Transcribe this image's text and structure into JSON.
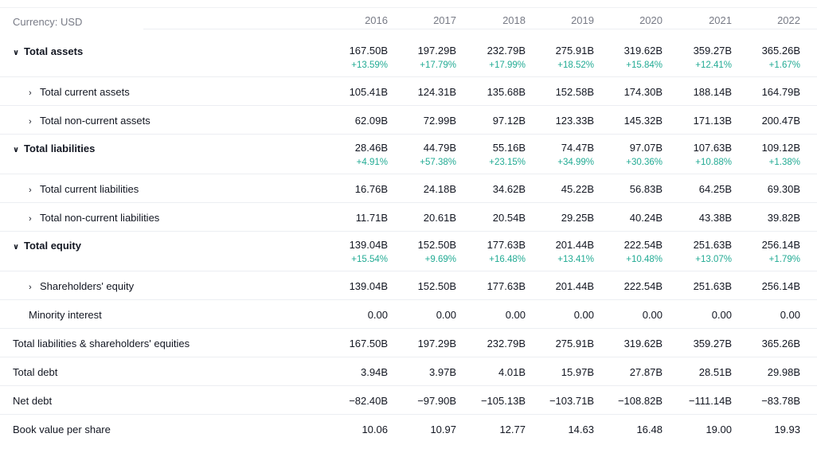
{
  "header": {
    "currency_label": "Currency: USD",
    "years": [
      "2016",
      "2017",
      "2018",
      "2019",
      "2020",
      "2021",
      "2022"
    ]
  },
  "icons": {
    "expanded": "chevron-down-icon",
    "collapsed": "chevron-right-icon"
  },
  "colors": {
    "positive": "#22ab94",
    "muted": "#787b86",
    "text": "#131722"
  },
  "rows": [
    {
      "label": "Total assets",
      "bold": true,
      "chevron": "down",
      "indent": 1,
      "values": [
        "167.50B",
        "197.29B",
        "232.79B",
        "275.91B",
        "319.62B",
        "359.27B",
        "365.26B"
      ],
      "changes": [
        "+13.59%",
        "+17.79%",
        "+17.99%",
        "+18.52%",
        "+15.84%",
        "+12.41%",
        "+1.67%"
      ]
    },
    {
      "label": "Total current assets",
      "bold": false,
      "chevron": "right",
      "indent": 2,
      "values": [
        "105.41B",
        "124.31B",
        "135.68B",
        "152.58B",
        "174.30B",
        "188.14B",
        "164.79B"
      ]
    },
    {
      "label": "Total non-current assets",
      "bold": false,
      "chevron": "right",
      "indent": 2,
      "values": [
        "62.09B",
        "72.99B",
        "97.12B",
        "123.33B",
        "145.32B",
        "171.13B",
        "200.47B"
      ]
    },
    {
      "label": "Total liabilities",
      "bold": true,
      "chevron": "down",
      "indent": 1,
      "values": [
        "28.46B",
        "44.79B",
        "55.16B",
        "74.47B",
        "97.07B",
        "107.63B",
        "109.12B"
      ],
      "changes": [
        "+4.91%",
        "+57.38%",
        "+23.15%",
        "+34.99%",
        "+30.36%",
        "+10.88%",
        "+1.38%"
      ]
    },
    {
      "label": "Total current liabilities",
      "bold": false,
      "chevron": "right",
      "indent": 2,
      "values": [
        "16.76B",
        "24.18B",
        "34.62B",
        "45.22B",
        "56.83B",
        "64.25B",
        "69.30B"
      ]
    },
    {
      "label": "Total non-current liabilities",
      "bold": false,
      "chevron": "right",
      "indent": 2,
      "values": [
        "11.71B",
        "20.61B",
        "20.54B",
        "29.25B",
        "40.24B",
        "43.38B",
        "39.82B"
      ]
    },
    {
      "label": "Total equity",
      "bold": true,
      "chevron": "down",
      "indent": 1,
      "values": [
        "139.04B",
        "152.50B",
        "177.63B",
        "201.44B",
        "222.54B",
        "251.63B",
        "256.14B"
      ],
      "changes": [
        "+15.54%",
        "+9.69%",
        "+16.48%",
        "+13.41%",
        "+10.48%",
        "+13.07%",
        "+1.79%"
      ]
    },
    {
      "label": "Shareholders' equity",
      "bold": false,
      "chevron": "right",
      "indent": 2,
      "values": [
        "139.04B",
        "152.50B",
        "177.63B",
        "201.44B",
        "222.54B",
        "251.63B",
        "256.14B"
      ]
    },
    {
      "label": "Minority interest",
      "bold": false,
      "chevron": "none",
      "indent": 2,
      "values": [
        "0.00",
        "0.00",
        "0.00",
        "0.00",
        "0.00",
        "0.00",
        "0.00"
      ]
    },
    {
      "label": "Total liabilities & shareholders' equities",
      "bold": false,
      "chevron": "none",
      "indent": 0,
      "values": [
        "167.50B",
        "197.29B",
        "232.79B",
        "275.91B",
        "319.62B",
        "359.27B",
        "365.26B"
      ]
    },
    {
      "label": "Total debt",
      "bold": false,
      "chevron": "none",
      "indent": 0,
      "values": [
        "3.94B",
        "3.97B",
        "4.01B",
        "15.97B",
        "27.87B",
        "28.51B",
        "29.98B"
      ]
    },
    {
      "label": "Net debt",
      "bold": false,
      "chevron": "none",
      "indent": 0,
      "values": [
        "−82.40B",
        "−97.90B",
        "−105.13B",
        "−103.71B",
        "−108.82B",
        "−111.14B",
        "−83.78B"
      ]
    },
    {
      "label": "Book value per share",
      "bold": false,
      "chevron": "none",
      "indent": 0,
      "values": [
        "10.06",
        "10.97",
        "12.77",
        "14.63",
        "16.48",
        "19.00",
        "19.93"
      ]
    }
  ]
}
